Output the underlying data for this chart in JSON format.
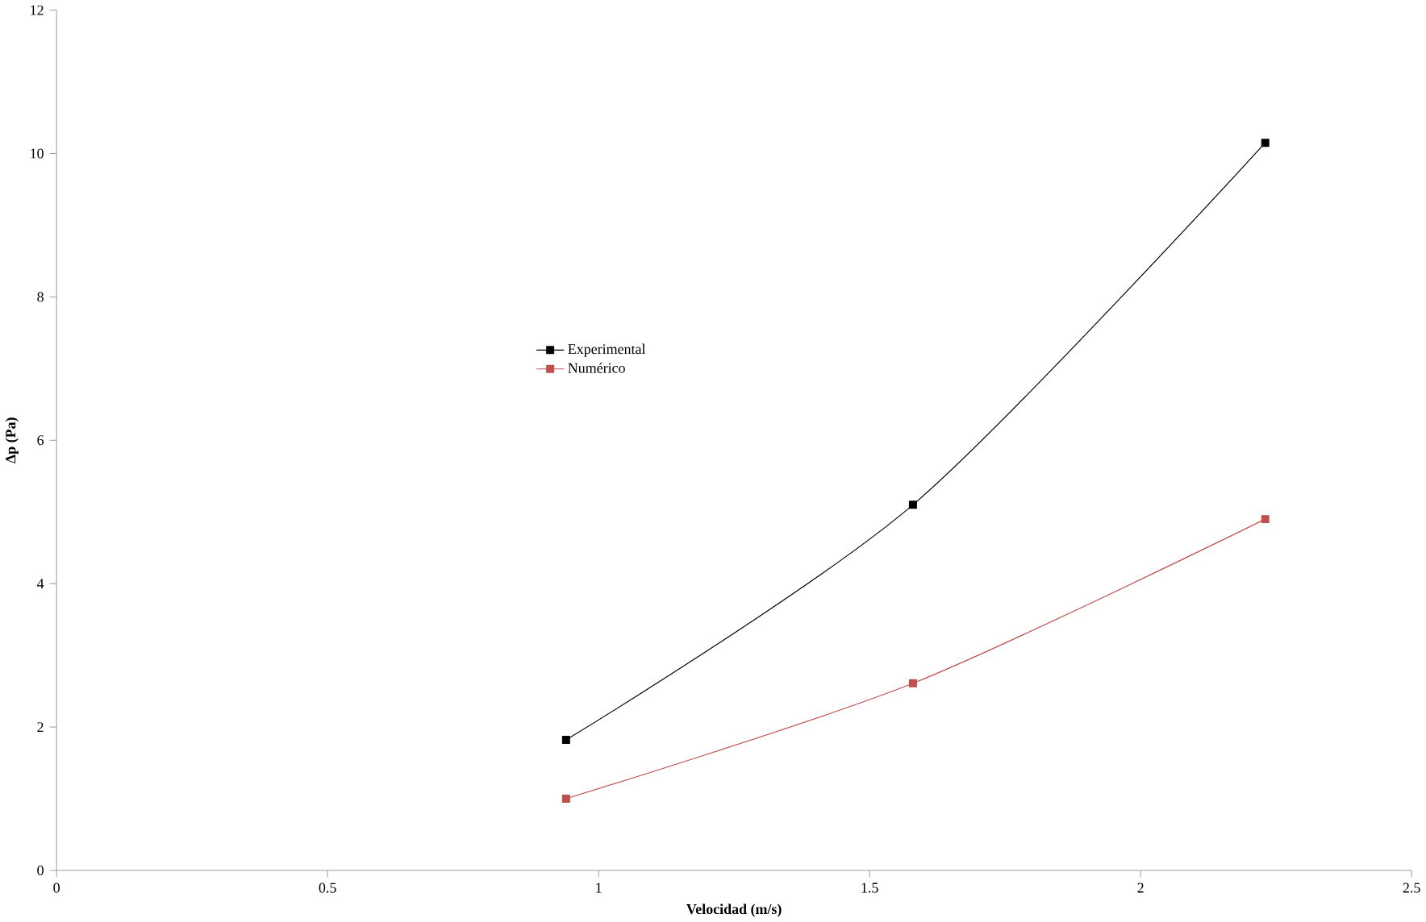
{
  "chart_data": {
    "type": "line",
    "xlabel": "Velocidad (m/s)",
    "ylabel": "Δp (Pa)",
    "xlim": [
      0,
      2.5
    ],
    "xticks": [
      0,
      0.5,
      1,
      1.5,
      2,
      2.5
    ],
    "ylim": [
      0,
      12
    ],
    "yticks": [
      0,
      2,
      4,
      6,
      8,
      10,
      12
    ],
    "x": [
      0.94,
      1.58,
      2.23
    ],
    "series": [
      {
        "name": "Experimental",
        "color": "#000000",
        "values": [
          1.82,
          5.1,
          10.15
        ]
      },
      {
        "name": "Numérico",
        "color": "#c0504d",
        "values": [
          1.0,
          2.61,
          4.9
        ]
      }
    ],
    "marker": "square",
    "line_style": "solid",
    "grid": false,
    "legend": "center"
  }
}
